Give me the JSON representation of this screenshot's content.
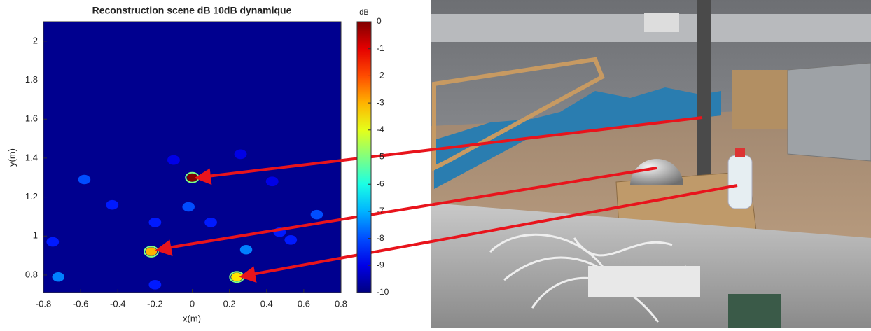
{
  "chart_data": {
    "type": "heatmap",
    "title": "Reconstruction scene dB 10dB dynamique",
    "x_label": "x(m)",
    "y_label": "y(m)",
    "colorbar_label": "dB",
    "xlim": [
      -0.8,
      0.8
    ],
    "ylim": [
      0.71,
      2.1
    ],
    "xticks": [
      -0.8,
      -0.6,
      -0.4,
      -0.2,
      0,
      0.2,
      0.4,
      0.6,
      0.8
    ],
    "yticks": [
      0.8,
      1,
      1.2,
      1.4,
      1.6,
      1.8,
      2
    ],
    "clim": [
      -10,
      0
    ],
    "cticks": [
      0,
      -1,
      -2,
      -3,
      -4,
      -5,
      -6,
      -7,
      -8,
      -9,
      -10
    ],
    "colormap": "jet",
    "x": [
      0,
      -0.22,
      0.24,
      -0.72,
      -0.58,
      -0.43,
      0.67,
      0.47,
      -0.02,
      0.29,
      0.1,
      -0.2,
      -0.75,
      0.53,
      0.43,
      -0.1,
      0.26,
      -0.2
    ],
    "y": [
      1.3,
      0.92,
      0.79,
      0.79,
      1.29,
      1.16,
      1.11,
      1.02,
      1.15,
      0.93,
      1.07,
      1.07,
      0.97,
      0.98,
      1.28,
      1.39,
      1.42,
      0.75
    ],
    "values": [
      0,
      -3,
      -3.5,
      -7.5,
      -8,
      -8.5,
      -8,
      -8.5,
      -8,
      -7.5,
      -8.5,
      -8.5,
      -8.5,
      -8.5,
      -9,
      -9,
      -9,
      -8.5
    ]
  }
}
